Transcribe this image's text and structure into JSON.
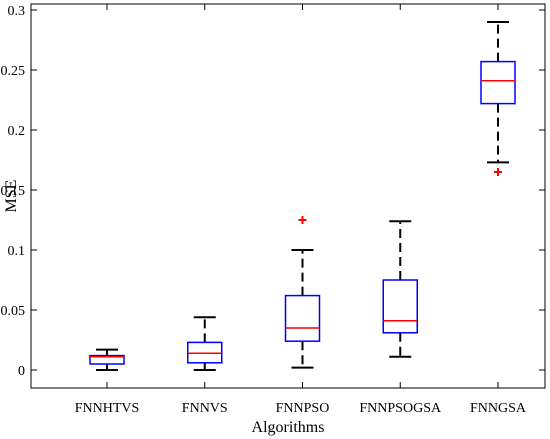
{
  "chart_data": {
    "type": "boxplot",
    "title": "",
    "xlabel": "Algorithms",
    "ylabel": "MSE",
    "ylim": [
      -0.015,
      0.305
    ],
    "yticks": [
      0,
      0.05,
      0.1,
      0.15,
      0.2,
      0.25,
      0.3
    ],
    "ytick_labels": [
      "0",
      "0.05",
      "0.1",
      "0.15",
      "0.2",
      "0.25",
      "0.3"
    ],
    "categories": [
      "FNNHTVS",
      "FNNVS",
      "FNNPSO",
      "FNNPSOGSA",
      "FNNGSA"
    ],
    "boxes": [
      {
        "whisker_low": 0.0,
        "q1": 0.005,
        "median": 0.011,
        "q3": 0.012,
        "whisker_high": 0.017,
        "outliers": []
      },
      {
        "whisker_low": 0.0,
        "q1": 0.006,
        "median": 0.014,
        "q3": 0.023,
        "whisker_high": 0.044,
        "outliers": []
      },
      {
        "whisker_low": 0.002,
        "q1": 0.024,
        "median": 0.035,
        "q3": 0.062,
        "whisker_high": 0.1,
        "outliers": [
          0.125
        ]
      },
      {
        "whisker_low": 0.011,
        "q1": 0.031,
        "median": 0.041,
        "q3": 0.075,
        "whisker_high": 0.124,
        "outliers": []
      },
      {
        "whisker_low": 0.173,
        "q1": 0.222,
        "median": 0.241,
        "q3": 0.257,
        "whisker_high": 0.29,
        "outliers": [
          0.165
        ]
      }
    ],
    "colors": {
      "box": "#0000ff",
      "median": "#ff0000",
      "whisker": "#000000",
      "outlier": "#ff0000"
    },
    "grid": false,
    "legend": "none"
  }
}
